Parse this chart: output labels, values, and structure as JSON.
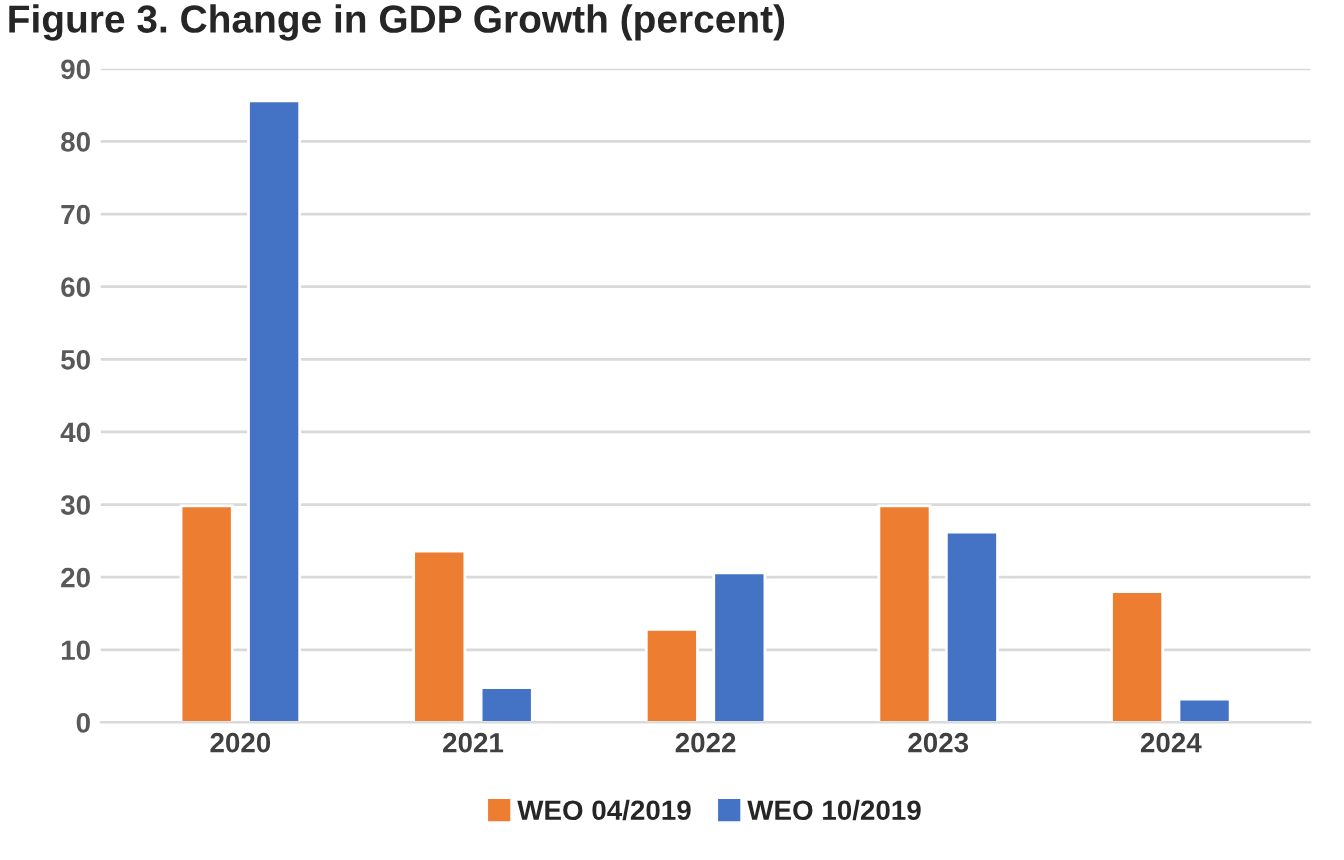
{
  "chart_data": {
    "type": "bar",
    "title": "Figure 3. Change in GDP Growth (percent)",
    "categories": [
      "2020",
      "2021",
      "2022",
      "2023",
      "2024"
    ],
    "series": [
      {
        "name": "WEO 04/2019",
        "color": "#ed7d31",
        "values": [
          29.8,
          23.6,
          12.8,
          29.8,
          18.0
        ]
      },
      {
        "name": "WEO 10/2019",
        "color": "#4472c4",
        "values": [
          85.6,
          4.8,
          20.6,
          26.2,
          3.2
        ]
      }
    ],
    "ylim": [
      0,
      90
    ],
    "yticks": [
      0,
      10,
      20,
      30,
      40,
      50,
      60,
      70,
      80,
      90
    ],
    "grid": "y",
    "legend": "bottom"
  }
}
